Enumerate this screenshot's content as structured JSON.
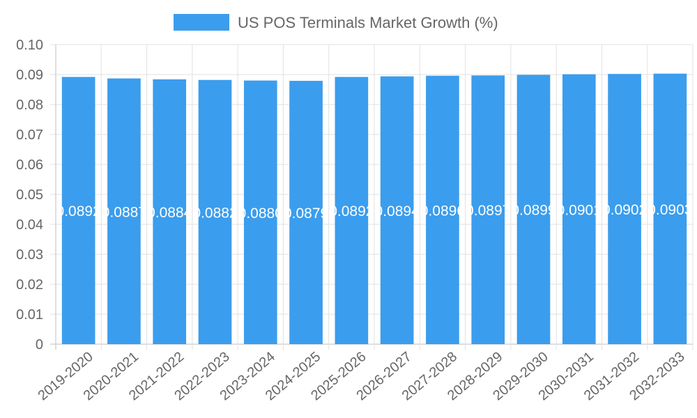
{
  "chart_data": {
    "type": "bar",
    "title": "",
    "legend": {
      "position": "top",
      "entries": [
        "US POS Terminals Market Growth (%)"
      ]
    },
    "series": [
      {
        "name": "US POS Terminals Market Growth (%)",
        "color": "#3b9ded",
        "values": [
          0.0892,
          0.0887,
          0.0884,
          0.0882,
          0.088,
          0.0879,
          0.0892,
          0.0894,
          0.0896,
          0.0897,
          0.0899,
          0.0901,
          0.0902,
          0.0903
        ]
      }
    ],
    "categories": [
      "2019-2020",
      "2020-2021",
      "2021-2022",
      "2022-2023",
      "2023-2024",
      "2024-2025",
      "2025-2026",
      "2026-2027",
      "2027-2028",
      "2028-2029",
      "2029-2030",
      "2030-2031",
      "2031-2032",
      "2032-2033"
    ],
    "data_labels": [
      "0.0892",
      "0.0887",
      "0.0884",
      "0.0882",
      "0.0880",
      "0.0879",
      "0.0892",
      "0.0894",
      "0.0896",
      "0.0897",
      "0.0899",
      "0.0901",
      "0.0902",
      "0.0903"
    ],
    "y_ticks": [
      "0",
      "0.01",
      "0.02",
      "0.03",
      "0.04",
      "0.05",
      "0.06",
      "0.07",
      "0.08",
      "0.09",
      "0.10"
    ],
    "ylim": [
      0,
      0.1
    ],
    "xlabel": "",
    "ylabel": "",
    "grid": true
  }
}
